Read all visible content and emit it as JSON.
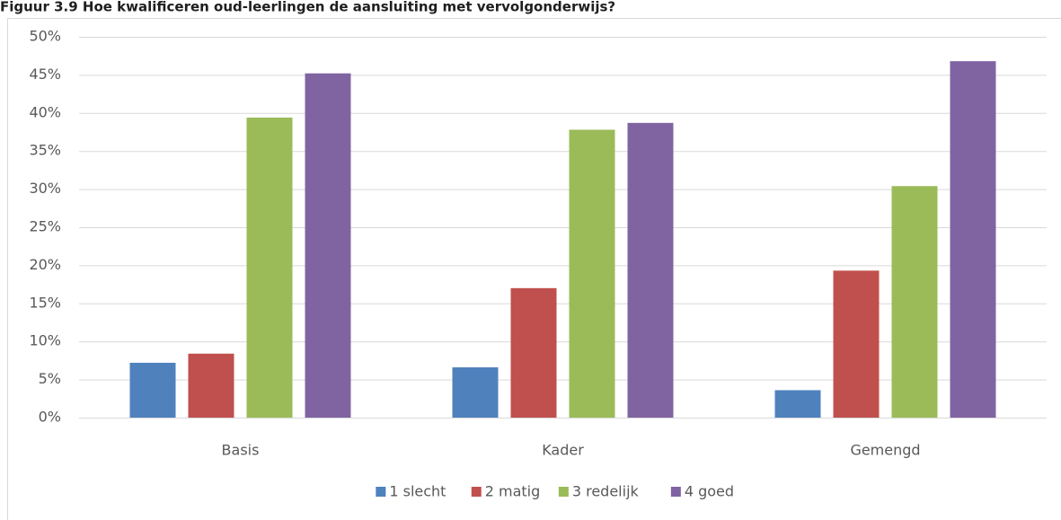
{
  "chart_data": {
    "type": "bar",
    "title": "Figuur 3.9 Hoe kwalificeren oud-leerlingen de aansluiting met vervolgonderwijs?",
    "categories": [
      "Basis",
      "Kader",
      "Gemengd"
    ],
    "series": [
      {
        "name": "1 slecht",
        "color": "#4f81bd",
        "values": [
          7.2,
          6.6,
          3.6
        ]
      },
      {
        "name": "2 matig",
        "color": "#c0504d",
        "values": [
          8.4,
          17.0,
          19.3
        ]
      },
      {
        "name": "3 redelijk",
        "color": "#9bbb59",
        "values": [
          39.4,
          37.8,
          30.4
        ]
      },
      {
        "name": "4 goed",
        "color": "#8064a2",
        "values": [
          45.2,
          38.7,
          46.8
        ]
      }
    ],
    "ylim": [
      0,
      50
    ],
    "yticks": [
      {
        "value": 0,
        "label": "0%"
      },
      {
        "value": 5,
        "label": "5%"
      },
      {
        "value": 10,
        "label": "10%"
      },
      {
        "value": 15,
        "label": "15%"
      },
      {
        "value": 20,
        "label": "20%"
      },
      {
        "value": 25,
        "label": "25%"
      },
      {
        "value": 30,
        "label": "30%"
      },
      {
        "value": 35,
        "label": "35%"
      },
      {
        "value": 40,
        "label": "40%"
      },
      {
        "value": 45,
        "label": "45%"
      },
      {
        "value": 50,
        "label": "50%"
      }
    ],
    "grid": true,
    "legend": "bottom"
  }
}
